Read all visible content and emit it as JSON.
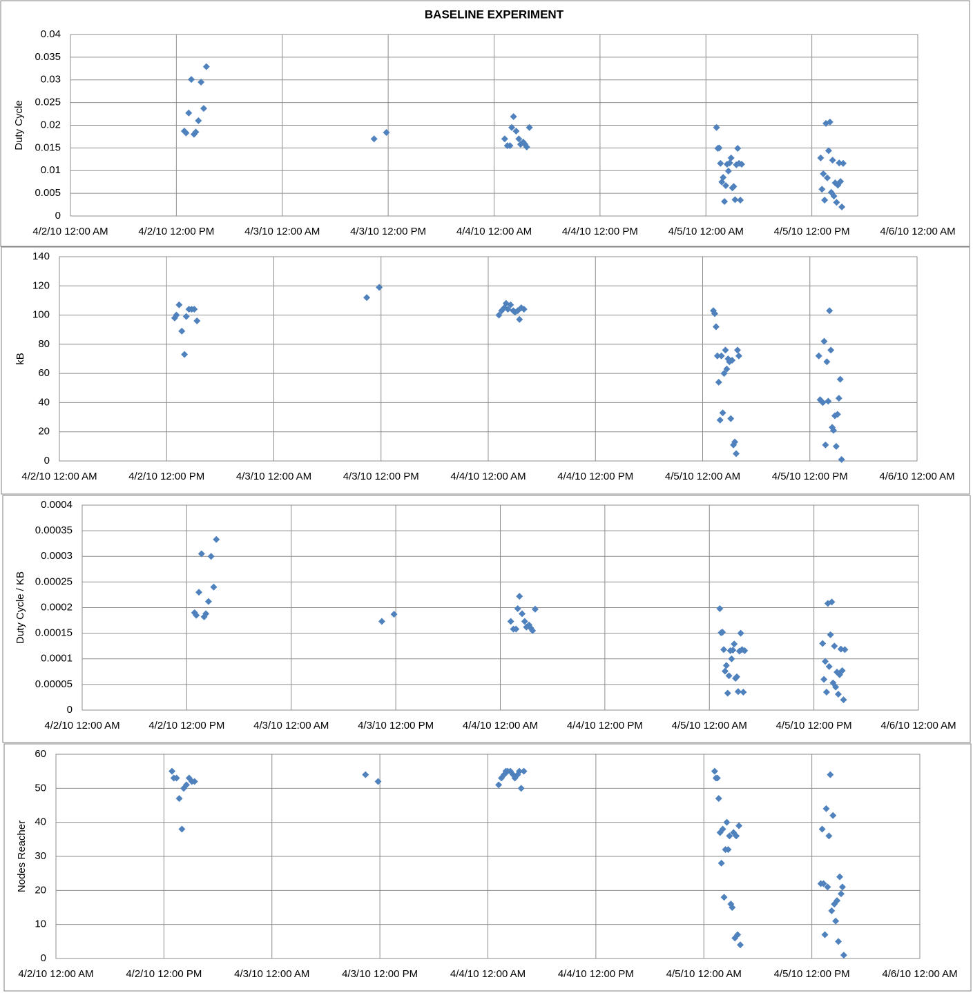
{
  "chart_data": [
    {
      "type": "scatter",
      "title": "BASELINE EXPERIMENT",
      "y_label": "Duty Cycle",
      "color": "#4f81bd",
      "grid": true,
      "x": [
        "2010-04-02T12:54",
        "2010-04-02T13:06",
        "2010-04-02T13:24",
        "2010-04-02T13:42",
        "2010-04-02T14:00",
        "2010-04-02T14:12",
        "2010-04-02T14:30",
        "2010-04-02T14:48",
        "2010-04-02T15:06",
        "2010-04-02T15:24",
        "2010-04-03T10:24",
        "2010-04-03T11:48",
        "2010-04-04T01:12",
        "2010-04-04T01:30",
        "2010-04-04T01:48",
        "2010-04-04T02:00",
        "2010-04-04T02:12",
        "2010-04-04T02:30",
        "2010-04-04T02:48",
        "2010-04-04T03:00",
        "2010-04-04T03:18",
        "2010-04-04T03:30",
        "2010-04-04T03:42",
        "2010-04-04T04:00",
        "2010-04-05T01:12",
        "2010-04-05T01:21",
        "2010-04-05T01:30",
        "2010-04-05T01:39",
        "2010-04-05T01:48",
        "2010-04-05T01:57",
        "2010-04-05T02:06",
        "2010-04-05T02:15",
        "2010-04-05T02:24",
        "2010-04-05T02:33",
        "2010-04-05T02:42",
        "2010-04-05T02:51",
        "2010-04-05T03:00",
        "2010-04-05T03:09",
        "2010-04-05T03:18",
        "2010-04-05T03:27",
        "2010-04-05T03:36",
        "2010-04-05T03:45",
        "2010-04-05T03:54",
        "2010-04-05T04:03",
        "2010-04-05T13:00",
        "2010-04-05T13:09",
        "2010-04-05T13:18",
        "2010-04-05T13:27",
        "2010-04-05T13:36",
        "2010-04-05T13:45",
        "2010-04-05T13:54",
        "2010-04-05T14:03",
        "2010-04-05T14:12",
        "2010-04-05T14:21",
        "2010-04-05T14:30",
        "2010-04-05T14:39",
        "2010-04-05T14:48",
        "2010-04-05T14:57",
        "2010-04-05T15:06",
        "2010-04-05T15:15",
        "2010-04-05T15:24",
        "2010-04-05T15:33"
      ],
      "values": [
        0.0187,
        0.0183,
        0.0227,
        0.0301,
        0.018,
        0.0185,
        0.021,
        0.0295,
        0.0237,
        0.0329,
        0.017,
        0.0184,
        0.017,
        0.0155,
        0.0155,
        0.0195,
        0.0219,
        0.0187,
        0.017,
        0.0158,
        0.0163,
        0.0158,
        0.0152,
        0.0195,
        0.0195,
        0.0149,
        0.015,
        0.0116,
        0.0075,
        0.0085,
        0.0032,
        0.0067,
        0.0114,
        0.0099,
        0.0117,
        0.0128,
        0.0062,
        0.0065,
        0.0036,
        0.0113,
        0.0149,
        0.0116,
        0.0035,
        0.0114,
        0.0128,
        0.0059,
        0.0093,
        0.0035,
        0.0204,
        0.0084,
        0.0144,
        0.0207,
        0.0052,
        0.0123,
        0.0044,
        0.0073,
        0.003,
        0.0068,
        0.0117,
        0.0076,
        0.002,
        0.0116
      ],
      "xlim": [
        "2010-04-02T00:00",
        "2010-04-06T00:00"
      ],
      "xticks": [
        {
          "value": "2010-04-02T00:00",
          "label": "4/2/10 12:00 AM"
        },
        {
          "value": "2010-04-02T12:00",
          "label": "4/2/10 12:00 PM"
        },
        {
          "value": "2010-04-03T00:00",
          "label": "4/3/10 12:00 AM"
        },
        {
          "value": "2010-04-03T12:00",
          "label": "4/3/10 12:00 PM"
        },
        {
          "value": "2010-04-04T00:00",
          "label": "4/4/10 12:00 AM"
        },
        {
          "value": "2010-04-04T12:00",
          "label": "4/4/10 12:00 PM"
        },
        {
          "value": "2010-04-05T00:00",
          "label": "4/5/10 12:00 AM"
        },
        {
          "value": "2010-04-05T12:00",
          "label": "4/5/10 12:00 PM"
        },
        {
          "value": "2010-04-06T00:00",
          "label": "4/6/10 12:00 AM"
        }
      ],
      "ylim": [
        0,
        0.04
      ],
      "yticks": [
        0,
        0.005,
        0.01,
        0.015,
        0.02,
        0.025,
        0.03,
        0.035,
        0.04
      ]
    },
    {
      "type": "scatter",
      "y_label": "kB",
      "color": "#4f81bd",
      "grid": true,
      "x": [
        "2010-04-02T12:54",
        "2010-04-02T13:06",
        "2010-04-02T13:24",
        "2010-04-02T13:42",
        "2010-04-02T14:00",
        "2010-04-02T14:12",
        "2010-04-02T14:30",
        "2010-04-02T14:48",
        "2010-04-02T15:06",
        "2010-04-02T15:24",
        "2010-04-03T10:24",
        "2010-04-03T11:48",
        "2010-04-04T01:12",
        "2010-04-04T01:30",
        "2010-04-04T01:48",
        "2010-04-04T02:00",
        "2010-04-04T02:12",
        "2010-04-04T02:30",
        "2010-04-04T02:48",
        "2010-04-04T03:00",
        "2010-04-04T03:18",
        "2010-04-04T03:30",
        "2010-04-04T03:42",
        "2010-04-04T04:00",
        "2010-04-05T01:12",
        "2010-04-05T01:21",
        "2010-04-05T01:30",
        "2010-04-05T01:39",
        "2010-04-05T01:48",
        "2010-04-05T01:57",
        "2010-04-05T02:06",
        "2010-04-05T02:15",
        "2010-04-05T02:24",
        "2010-04-05T02:33",
        "2010-04-05T02:42",
        "2010-04-05T02:51",
        "2010-04-05T03:00",
        "2010-04-05T03:09",
        "2010-04-05T03:18",
        "2010-04-05T03:27",
        "2010-04-05T03:36",
        "2010-04-05T03:45",
        "2010-04-05T03:54",
        "2010-04-05T04:03",
        "2010-04-05T13:00",
        "2010-04-05T13:09",
        "2010-04-05T13:18",
        "2010-04-05T13:27",
        "2010-04-05T13:36",
        "2010-04-05T13:45",
        "2010-04-05T13:54",
        "2010-04-05T14:03",
        "2010-04-05T14:12",
        "2010-04-05T14:21",
        "2010-04-05T14:30",
        "2010-04-05T14:39",
        "2010-04-05T14:48",
        "2010-04-05T14:57",
        "2010-04-05T15:06",
        "2010-04-05T15:15",
        "2010-04-05T15:24",
        "2010-04-05T15:33"
      ],
      "values": [
        98,
        100,
        107,
        89,
        73,
        99,
        104,
        104,
        104,
        96,
        112,
        119,
        100,
        103,
        105,
        108,
        104,
        107,
        103,
        102,
        103,
        97,
        105,
        104,
        103,
        101,
        92,
        72,
        54,
        28,
        72,
        33,
        60,
        76,
        63,
        70,
        68,
        29,
        69,
        11,
        13,
        5,
        76,
        72,
        72,
        42,
        41,
        40,
        82,
        11,
        68,
        41,
        103,
        76,
        23,
        21,
        31,
        10,
        32,
        43,
        56,
        1
      ],
      "xlim": [
        "2010-04-02T00:00",
        "2010-04-06T00:00"
      ],
      "xticks": [
        {
          "value": "2010-04-02T00:00",
          "label": "4/2/10 12:00 AM"
        },
        {
          "value": "2010-04-02T12:00",
          "label": "4/2/10 12:00 PM"
        },
        {
          "value": "2010-04-03T00:00",
          "label": "4/3/10 12:00 AM"
        },
        {
          "value": "2010-04-03T12:00",
          "label": "4/3/10 12:00 PM"
        },
        {
          "value": "2010-04-04T00:00",
          "label": "4/4/10 12:00 AM"
        },
        {
          "value": "2010-04-04T12:00",
          "label": "4/4/10 12:00 PM"
        },
        {
          "value": "2010-04-05T00:00",
          "label": "4/5/10 12:00 AM"
        },
        {
          "value": "2010-04-05T12:00",
          "label": "4/5/10 12:00 PM"
        },
        {
          "value": "2010-04-06T00:00",
          "label": "4/6/10 12:00 AM"
        }
      ],
      "ylim": [
        0,
        140
      ],
      "yticks": [
        0,
        20,
        40,
        60,
        80,
        100,
        120,
        140
      ]
    },
    {
      "type": "scatter",
      "y_label": "Duty Cycle / KB",
      "color": "#4f81bd",
      "grid": true,
      "x": [
        "2010-04-02T12:54",
        "2010-04-02T13:06",
        "2010-04-02T13:24",
        "2010-04-02T13:42",
        "2010-04-02T14:00",
        "2010-04-02T14:12",
        "2010-04-02T14:30",
        "2010-04-02T14:48",
        "2010-04-02T15:06",
        "2010-04-02T15:24",
        "2010-04-03T10:24",
        "2010-04-03T11:48",
        "2010-04-04T01:12",
        "2010-04-04T01:30",
        "2010-04-04T01:48",
        "2010-04-04T02:00",
        "2010-04-04T02:12",
        "2010-04-04T02:30",
        "2010-04-04T02:48",
        "2010-04-04T03:00",
        "2010-04-04T03:18",
        "2010-04-04T03:30",
        "2010-04-04T03:42",
        "2010-04-04T04:00",
        "2010-04-05T01:12",
        "2010-04-05T01:21",
        "2010-04-05T01:30",
        "2010-04-05T01:39",
        "2010-04-05T01:48",
        "2010-04-05T01:57",
        "2010-04-05T02:06",
        "2010-04-05T02:15",
        "2010-04-05T02:24",
        "2010-04-05T02:33",
        "2010-04-05T02:42",
        "2010-04-05T02:51",
        "2010-04-05T03:00",
        "2010-04-05T03:09",
        "2010-04-05T03:18",
        "2010-04-05T03:27",
        "2010-04-05T03:36",
        "2010-04-05T03:45",
        "2010-04-05T03:54",
        "2010-04-05T04:03",
        "2010-04-05T13:00",
        "2010-04-05T13:09",
        "2010-04-05T13:18",
        "2010-04-05T13:27",
        "2010-04-05T13:36",
        "2010-04-05T13:45",
        "2010-04-05T13:54",
        "2010-04-05T14:03",
        "2010-04-05T14:12",
        "2010-04-05T14:21",
        "2010-04-05T14:30",
        "2010-04-05T14:39",
        "2010-04-05T14:48",
        "2010-04-05T14:57",
        "2010-04-05T15:06",
        "2010-04-05T15:15",
        "2010-04-05T15:24",
        "2010-04-05T15:33"
      ],
      "values": [
        0.00019,
        0.000185,
        0.00023,
        0.000305,
        0.000182,
        0.000188,
        0.000212,
        0.0003,
        0.00024,
        0.000333,
        0.000173,
        0.000187,
        0.000173,
        0.000158,
        0.000158,
        0.000198,
        0.000222,
        0.000188,
        0.000173,
        0.000162,
        0.000166,
        0.00016,
        0.000155,
        0.000197,
        0.000198,
        0.000151,
        0.000152,
        0.000118,
        7.6e-05,
        8.7e-05,
        3.3e-05,
        6.7e-05,
        0.000116,
        0.0001,
        0.000117,
        0.000129,
        6.2e-05,
        6.5e-05,
        3.6e-05,
        0.000115,
        0.00015,
        0.000118,
        3.5e-05,
        0.000116,
        0.00013,
        6e-05,
        9.5e-05,
        3.5e-05,
        0.000208,
        8.5e-05,
        0.000147,
        0.000211,
        5.3e-05,
        0.000125,
        4.5e-05,
        7.4e-05,
        3.1e-05,
        6.9e-05,
        0.000119,
        7.7e-05,
        2e-05,
        0.000118
      ],
      "xlim": [
        "2010-04-02T00:00",
        "2010-04-06T00:00"
      ],
      "xticks": [
        {
          "value": "2010-04-02T00:00",
          "label": "4/2/10 12:00 AM"
        },
        {
          "value": "2010-04-02T12:00",
          "label": "4/2/10 12:00 PM"
        },
        {
          "value": "2010-04-03T00:00",
          "label": "4/3/10 12:00 AM"
        },
        {
          "value": "2010-04-03T12:00",
          "label": "4/3/10 12:00 PM"
        },
        {
          "value": "2010-04-04T00:00",
          "label": "4/4/10 12:00 AM"
        },
        {
          "value": "2010-04-04T12:00",
          "label": "4/4/10 12:00 PM"
        },
        {
          "value": "2010-04-05T00:00",
          "label": "4/5/10 12:00 AM"
        },
        {
          "value": "2010-04-05T12:00",
          "label": "4/5/10 12:00 PM"
        },
        {
          "value": "2010-04-06T00:00",
          "label": "4/6/10 12:00 AM"
        }
      ],
      "ylim": [
        0,
        0.0004
      ],
      "yticks": [
        0,
        5e-05,
        0.0001,
        0.00015,
        0.0002,
        0.00025,
        0.0003,
        0.00035,
        0.0004
      ]
    },
    {
      "type": "scatter",
      "y_label": "Nodes Reacher",
      "color": "#4f81bd",
      "grid": true,
      "x": [
        "2010-04-02T12:54",
        "2010-04-02T13:06",
        "2010-04-02T13:24",
        "2010-04-02T13:42",
        "2010-04-02T14:00",
        "2010-04-02T14:12",
        "2010-04-02T14:30",
        "2010-04-02T14:48",
        "2010-04-02T15:06",
        "2010-04-02T15:24",
        "2010-04-03T10:24",
        "2010-04-03T11:48",
        "2010-04-04T01:12",
        "2010-04-04T01:30",
        "2010-04-04T01:48",
        "2010-04-04T02:00",
        "2010-04-04T02:12",
        "2010-04-04T02:30",
        "2010-04-04T02:48",
        "2010-04-04T03:00",
        "2010-04-04T03:18",
        "2010-04-04T03:30",
        "2010-04-04T03:42",
        "2010-04-04T04:00",
        "2010-04-05T01:12",
        "2010-04-05T01:21",
        "2010-04-05T01:30",
        "2010-04-05T01:39",
        "2010-04-05T01:48",
        "2010-04-05T01:57",
        "2010-04-05T02:06",
        "2010-04-05T02:15",
        "2010-04-05T02:24",
        "2010-04-05T02:33",
        "2010-04-05T02:42",
        "2010-04-05T02:51",
        "2010-04-05T03:00",
        "2010-04-05T03:09",
        "2010-04-05T03:18",
        "2010-04-05T03:27",
        "2010-04-05T03:36",
        "2010-04-05T03:45",
        "2010-04-05T03:54",
        "2010-04-05T04:03",
        "2010-04-05T13:00",
        "2010-04-05T13:09",
        "2010-04-05T13:18",
        "2010-04-05T13:27",
        "2010-04-05T13:36",
        "2010-04-05T13:45",
        "2010-04-05T13:54",
        "2010-04-05T14:03",
        "2010-04-05T14:12",
        "2010-04-05T14:21",
        "2010-04-05T14:30",
        "2010-04-05T14:39",
        "2010-04-05T14:48",
        "2010-04-05T14:57",
        "2010-04-05T15:06",
        "2010-04-05T15:15",
        "2010-04-05T15:24",
        "2010-04-05T15:33"
      ],
      "values": [
        55,
        53,
        53,
        47,
        38,
        50,
        51,
        53,
        52,
        52,
        54,
        52,
        51,
        53,
        54,
        55,
        55,
        55,
        54,
        53,
        54,
        55,
        50,
        55,
        55,
        53,
        53,
        47,
        37,
        28,
        38,
        18,
        32,
        40,
        32,
        36,
        16,
        15,
        37,
        6,
        36,
        7,
        39,
        4,
        22,
        38,
        22,
        7,
        44,
        21,
        36,
        54,
        14,
        42,
        16,
        11,
        17,
        5,
        24,
        19,
        21,
        1
      ],
      "xlim": [
        "2010-04-02T00:00",
        "2010-04-06T00:00"
      ],
      "xticks": [
        {
          "value": "2010-04-02T00:00",
          "label": "4/2/10 12:00 AM"
        },
        {
          "value": "2010-04-02T12:00",
          "label": "4/2/10 12:00 PM"
        },
        {
          "value": "2010-04-03T00:00",
          "label": "4/3/10 12:00 AM"
        },
        {
          "value": "2010-04-03T12:00",
          "label": "4/3/10 12:00 PM"
        },
        {
          "value": "2010-04-04T00:00",
          "label": "4/4/10 12:00 AM"
        },
        {
          "value": "2010-04-04T12:00",
          "label": "4/4/10 12:00 PM"
        },
        {
          "value": "2010-04-05T00:00",
          "label": "4/5/10 12:00 AM"
        },
        {
          "value": "2010-04-05T12:00",
          "label": "4/5/10 12:00 PM"
        },
        {
          "value": "2010-04-06T00:00",
          "label": "4/6/10 12:00 AM"
        }
      ],
      "ylim": [
        0,
        60
      ],
      "yticks": [
        0,
        10,
        20,
        30,
        40,
        50,
        60
      ]
    }
  ]
}
